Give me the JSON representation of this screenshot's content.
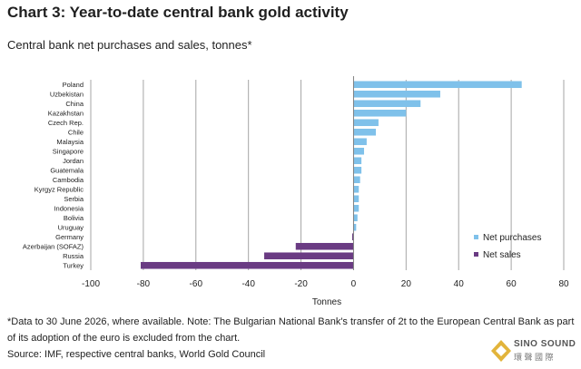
{
  "header": {
    "title": "Chart 3: Year-to-date central bank gold activity",
    "subtitle": "Central bank net purchases and sales, tonnes*"
  },
  "footnote": "*Data to 30 June 2026, where available. Note: The Bulgarian National Bank's transfer of 2t to the European Central Bank as part of its adoption of the euro is excluded from the chart.",
  "source": "Source: IMF, respective central banks, World Gold Council",
  "logo": {
    "line1": "SINO SOUND",
    "line2": "環 聲 國 際"
  },
  "colors": {
    "purchases": "#7fc1ea",
    "sales": "#6a3b83",
    "grid": "#a6a6a6",
    "axis": "#7f7f7f"
  },
  "chart_data": {
    "type": "bar",
    "orientation": "horizontal",
    "categories": [
      "Poland",
      "Uzbekistan",
      "China",
      "Kazakhstan",
      "Czech Rep.",
      "Chile",
      "Malaysia",
      "Singapore",
      "Jordan",
      "Guatemala",
      "Cambodia",
      "Kyrgyz Republic",
      "Serbia",
      "Indonesia",
      "Bolivia",
      "Uruguay",
      "Germany",
      "Azerbaijan (SOFAZ)",
      "Russia",
      "Turkey"
    ],
    "series": [
      {
        "name": "Net purchases",
        "values": [
          64,
          33,
          25.5,
          20,
          9.5,
          8.5,
          5,
          4,
          3,
          3,
          2.5,
          2,
          2,
          2,
          1.5,
          1,
          null,
          null,
          null,
          null
        ]
      },
      {
        "name": "Net sales",
        "values": [
          null,
          null,
          null,
          null,
          null,
          null,
          null,
          null,
          null,
          null,
          null,
          null,
          null,
          null,
          null,
          null,
          -0.5,
          -22,
          -34,
          -81
        ]
      }
    ],
    "xlabel": "Tonnes",
    "xlim": [
      -100,
      80
    ],
    "xticks": [
      -100,
      -80,
      -60,
      -40,
      -20,
      0,
      20,
      40,
      60,
      80
    ],
    "grid": "vertical",
    "legend": "bottom-right"
  }
}
